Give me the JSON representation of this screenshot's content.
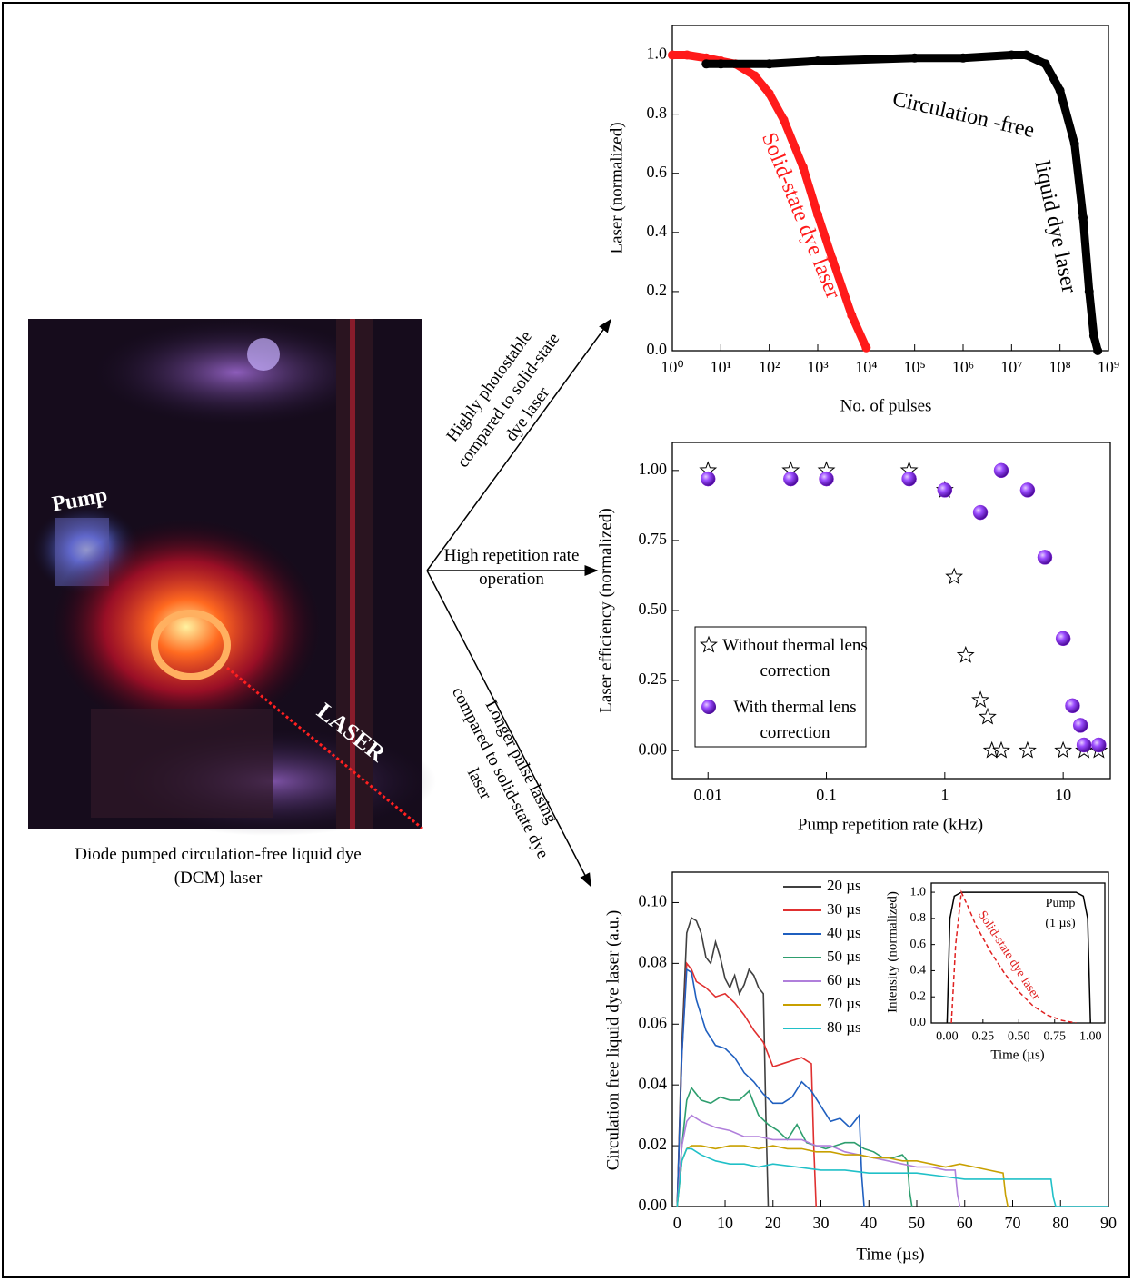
{
  "photo": {
    "labels": [
      "Pump",
      "LASER"
    ],
    "caption": "Diode pumped circulation-free liquid dye (DCM) laser"
  },
  "arrows": [
    {
      "label": "Highly photostable compared to solid-state dye laser"
    },
    {
      "label": "High repetition rate operation"
    },
    {
      "label": "Longer pulse lasing compared to solid-state dye laser"
    }
  ],
  "chart_data": [
    {
      "type": "scatter",
      "x_label": "No. of pulses",
      "y_label": "Laser (normalized)",
      "log_x": true,
      "xlim": [
        1,
        1000000000
      ],
      "xticks": [
        {
          "value": 1,
          "label": "10⁰"
        },
        {
          "value": 10,
          "label": "10¹"
        },
        {
          "value": 100,
          "label": "10²"
        },
        {
          "value": 1000,
          "label": "10³"
        },
        {
          "value": 10000,
          "label": "10⁴"
        },
        {
          "value": 100000,
          "label": "10⁵"
        },
        {
          "value": 1000000,
          "label": "10⁶"
        },
        {
          "value": 10000000,
          "label": "10⁷"
        },
        {
          "value": 100000000,
          "label": "10⁸"
        },
        {
          "value": 1000000000,
          "label": "10⁹"
        }
      ],
      "ylim": [
        0,
        1.1
      ],
      "yticks": [
        {
          "value": 0,
          "label": "0.0"
        },
        0.2,
        0.4,
        0.6,
        0.8,
        {
          "value": 1,
          "label": "1.0"
        }
      ],
      "annotations": [
        "Solid-state dye laser",
        "Circulation -free",
        "liquid dye laser"
      ],
      "series": [
        {
          "color": "#ff1a1a",
          "marker": "circle",
          "x": [
            1,
            2,
            5,
            10,
            20,
            50,
            100,
            200,
            500,
            1000,
            2000,
            5000,
            10000
          ],
          "values": [
            1.0,
            1.0,
            0.99,
            0.98,
            0.97,
            0.93,
            0.87,
            0.78,
            0.62,
            0.46,
            0.31,
            0.12,
            0.01
          ]
        },
        {
          "color": "#000000",
          "marker": "circle",
          "x": [
            5,
            10,
            100,
            1000,
            100000,
            1000000,
            10000000,
            20000000,
            50000000,
            100000000,
            200000000,
            300000000,
            400000000,
            500000000,
            600000000
          ],
          "values": [
            0.97,
            0.97,
            0.97,
            0.98,
            0.99,
            0.99,
            1.0,
            1.0,
            0.97,
            0.88,
            0.7,
            0.45,
            0.2,
            0.05,
            0.0
          ]
        }
      ]
    },
    {
      "type": "scatter",
      "x_label": "Pump repetition rate (kHz)",
      "y_label": "Laser efficiency (normalized)",
      "log_x": true,
      "xlim": [
        0.005,
        25
      ],
      "xticks": [
        0.01,
        0.1,
        1,
        10
      ],
      "ylim": [
        -0.1,
        1.1
      ],
      "yticks": [
        {
          "value": 0,
          "label": "0.00"
        },
        0.25,
        {
          "value": 0.5,
          "label": "0.50"
        },
        0.75,
        {
          "value": 1,
          "label": "1.00"
        }
      ],
      "series": [
        {
          "name": "Without thermal lens correction",
          "color": "#ffffff",
          "marker": "star",
          "x": [
            0.01,
            0.05,
            0.1,
            0.5,
            1,
            1.2,
            1.5,
            2,
            2.3,
            2.5,
            3,
            5,
            10,
            15,
            20
          ],
          "values": [
            1,
            1,
            1,
            1,
            0.93,
            0.62,
            0.34,
            0.18,
            0.12,
            0,
            0,
            0,
            0,
            0,
            0
          ]
        },
        {
          "name": "With thermal lens correction",
          "color": "#8a2be2",
          "marker": "sphere",
          "x": [
            0.01,
            0.05,
            0.1,
            0.5,
            1,
            2,
            3,
            5,
            7,
            10,
            12,
            14,
            15,
            20
          ],
          "values": [
            0.97,
            0.97,
            0.97,
            0.97,
            0.93,
            0.85,
            1.0,
            0.93,
            0.69,
            0.4,
            0.16,
            0.09,
            0.02,
            0.02
          ]
        }
      ]
    },
    {
      "type": "line",
      "x_label": "Time (µs)",
      "y_label": "Circulation free liquid dye laser (a.u.)",
      "xlim": [
        -1,
        90
      ],
      "xticks": [
        0,
        10,
        20,
        30,
        40,
        50,
        60,
        70,
        80,
        90
      ],
      "ylim": [
        0,
        0.11
      ],
      "yticks": [
        {
          "value": 0,
          "label": "0.00"
        },
        0.02,
        0.04,
        0.06,
        0.08,
        {
          "value": 0.1,
          "label": "0.10"
        }
      ],
      "series": [
        {
          "name": "20 µs",
          "color": "#404040",
          "x": [
            0,
            0.9,
            2,
            3,
            4,
            5,
            6,
            7,
            8,
            9,
            10,
            11,
            12,
            13,
            14,
            15,
            16,
            17,
            18,
            18.5,
            19
          ],
          "values": [
            0,
            0.05,
            0.09,
            0.095,
            0.094,
            0.09,
            0.082,
            0.08,
            0.087,
            0.082,
            0.075,
            0.072,
            0.076,
            0.07,
            0.073,
            0.078,
            0.076,
            0.072,
            0.07,
            0.03,
            0
          ]
        },
        {
          "name": "30 µs",
          "color": "#e03030",
          "x": [
            0,
            1,
            2,
            3,
            4,
            6,
            8,
            10,
            12,
            14,
            16,
            18,
            19,
            20,
            22,
            24,
            26,
            28,
            28.5,
            29
          ],
          "values": [
            0,
            0.05,
            0.08,
            0.078,
            0.074,
            0.072,
            0.069,
            0.07,
            0.067,
            0.063,
            0.058,
            0.054,
            0.05,
            0.046,
            0.047,
            0.048,
            0.049,
            0.047,
            0.02,
            0
          ]
        },
        {
          "name": "40 µs",
          "color": "#1f5fbf",
          "x": [
            0,
            1,
            2,
            3,
            4,
            6,
            8,
            10,
            12,
            14,
            16,
            18,
            20,
            22,
            24,
            26,
            28,
            30,
            32,
            34,
            36,
            38,
            38.5,
            39
          ],
          "values": [
            0,
            0.05,
            0.078,
            0.077,
            0.068,
            0.058,
            0.053,
            0.052,
            0.049,
            0.044,
            0.041,
            0.037,
            0.034,
            0.034,
            0.036,
            0.041,
            0.038,
            0.033,
            0.028,
            0.029,
            0.026,
            0.03,
            0.01,
            0
          ]
        },
        {
          "name": "50 µs",
          "color": "#2e9e6e",
          "x": [
            0,
            1,
            2,
            3,
            5,
            7,
            9,
            11,
            13,
            15,
            17,
            19,
            21,
            23,
            25,
            27,
            29,
            31,
            33,
            35,
            37,
            39,
            41,
            43,
            45,
            47,
            48,
            48.5,
            49
          ],
          "values": [
            0,
            0.02,
            0.035,
            0.039,
            0.035,
            0.034,
            0.036,
            0.035,
            0.035,
            0.038,
            0.03,
            0.027,
            0.025,
            0.022,
            0.027,
            0.021,
            0.02,
            0.019,
            0.02,
            0.021,
            0.021,
            0.019,
            0.018,
            0.016,
            0.016,
            0.017,
            0.015,
            0.005,
            0
          ]
        },
        {
          "name": "60 µs",
          "color": "#b07fdb",
          "x": [
            0,
            1,
            2,
            3,
            5,
            8,
            11,
            14,
            17,
            20,
            23,
            26,
            29,
            32,
            35,
            38,
            41,
            44,
            47,
            50,
            53,
            56,
            58,
            58.5,
            59
          ],
          "values": [
            0,
            0.02,
            0.028,
            0.03,
            0.028,
            0.026,
            0.025,
            0.023,
            0.023,
            0.022,
            0.022,
            0.022,
            0.02,
            0.02,
            0.018,
            0.017,
            0.016,
            0.015,
            0.014,
            0.013,
            0.013,
            0.012,
            0.012,
            0.004,
            0
          ]
        },
        {
          "name": "70 µs",
          "color": "#c8a000",
          "x": [
            0,
            1,
            2,
            3,
            5,
            8,
            11,
            14,
            17,
            20,
            23,
            26,
            29,
            32,
            35,
            38,
            41,
            44,
            47,
            50,
            53,
            56,
            59,
            62,
            65,
            68,
            68.5,
            69
          ],
          "values": [
            0,
            0.015,
            0.019,
            0.02,
            0.02,
            0.019,
            0.02,
            0.02,
            0.019,
            0.02,
            0.019,
            0.019,
            0.018,
            0.018,
            0.017,
            0.017,
            0.016,
            0.016,
            0.015,
            0.015,
            0.014,
            0.013,
            0.014,
            0.013,
            0.012,
            0.011,
            0.004,
            0
          ]
        },
        {
          "name": "80 µs",
          "color": "#20c0c8",
          "x": [
            0,
            1,
            2,
            3,
            5,
            8,
            11,
            14,
            17,
            20,
            25,
            30,
            35,
            40,
            45,
            50,
            55,
            60,
            65,
            70,
            75,
            78,
            78.5,
            79,
            90
          ],
          "values": [
            0,
            0.015,
            0.019,
            0.019,
            0.017,
            0.015,
            0.014,
            0.014,
            0.013,
            0.014,
            0.013,
            0.012,
            0.012,
            0.011,
            0.011,
            0.011,
            0.01,
            0.009,
            0.009,
            0.009,
            0.009,
            0.009,
            0.003,
            0,
            0
          ]
        }
      ]
    },
    {
      "type": "line",
      "x_label": "Time (µs)",
      "y_label": "Intensity (normalized)",
      "xlim": [
        -0.11,
        1.1
      ],
      "xticks": [
        {
          "value": 0,
          "label": "0.00"
        },
        0.25,
        {
          "value": 0.5,
          "label": "0.50"
        },
        0.75,
        {
          "value": 1,
          "label": "1.00"
        }
      ],
      "ylim": [
        0,
        1.07
      ],
      "yticks": [
        {
          "value": 0,
          "label": "0.0"
        },
        0.2,
        0.4,
        0.6,
        0.8,
        {
          "value": 1,
          "label": "1.0"
        }
      ],
      "annotations": [
        "Pump",
        "(1 µs)",
        "Solid-state dye laser"
      ],
      "series": [
        {
          "color": "#000000",
          "line_style": "solid",
          "x": [
            0,
            0.02,
            0.05,
            0.1,
            0.9,
            0.95,
            0.98,
            1.0
          ],
          "values": [
            0,
            0.8,
            0.97,
            1.0,
            1.0,
            0.97,
            0.8,
            0
          ]
        },
        {
          "color": "#e02020",
          "line_style": "dashed",
          "x": [
            0.03,
            0.06,
            0.1,
            0.15,
            0.2,
            0.3,
            0.4,
            0.5,
            0.6,
            0.7,
            0.8,
            0.9
          ],
          "values": [
            0,
            0.6,
            1.0,
            0.88,
            0.75,
            0.55,
            0.38,
            0.24,
            0.13,
            0.06,
            0.02,
            0
          ]
        }
      ]
    }
  ]
}
